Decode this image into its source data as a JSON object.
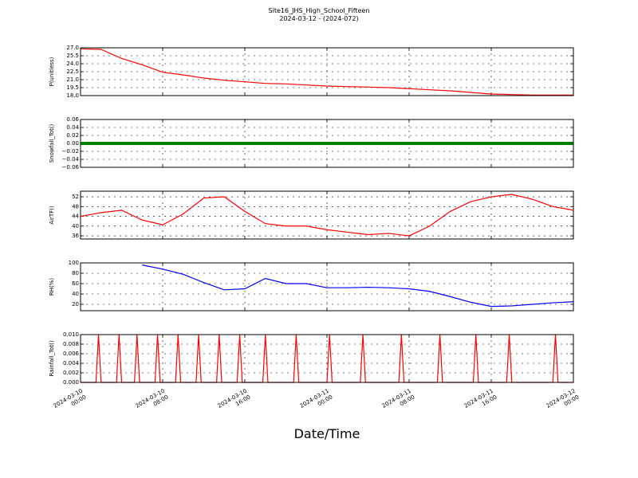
{
  "title": "Site16_JHS_High_School_Fifteen",
  "subtitle": "2024-03-12 - (2024-072)",
  "xlabel": "Date/Time",
  "xlim": [
    "2024-03-10 00:00",
    "2024-03-12 00:00"
  ],
  "xticks": [
    {
      "value": "2024-03-10 00:00",
      "label": [
        "2024-03-10",
        "00:00"
      ]
    },
    {
      "value": "2024-03-10 08:00",
      "label": [
        "2024-03-10",
        "08:00"
      ]
    },
    {
      "value": "2024-03-10 16:00",
      "label": [
        "2024-03-10",
        "16:00"
      ]
    },
    {
      "value": "2024-03-11 00:00",
      "label": [
        "2024-03-11",
        "00:00"
      ]
    },
    {
      "value": "2024-03-11 08:00",
      "label": [
        "2024-03-11",
        "08:00"
      ]
    },
    {
      "value": "2024-03-11 16:00",
      "label": [
        "2024-03-11",
        "16:00"
      ]
    },
    {
      "value": "2024-03-12 00:00",
      "label": [
        "2024-03-12",
        "00:00"
      ]
    }
  ],
  "chart_data": [
    {
      "type": "line",
      "ylabel": "P(unitless)",
      "grid": true,
      "x": [
        "2024-03-10 00:00",
        "2024-03-10 02:00",
        "2024-03-10 04:00",
        "2024-03-10 06:00",
        "2024-03-10 08:00",
        "2024-03-10 10:00",
        "2024-03-10 12:00",
        "2024-03-10 14:00",
        "2024-03-10 16:00",
        "2024-03-10 18:00",
        "2024-03-10 20:00",
        "2024-03-10 22:00",
        "2024-03-11 00:00",
        "2024-03-11 02:00",
        "2024-03-11 04:00",
        "2024-03-11 06:00",
        "2024-03-11 08:00",
        "2024-03-11 10:00",
        "2024-03-11 12:00",
        "2024-03-11 14:00",
        "2024-03-11 16:00",
        "2024-03-11 18:00",
        "2024-03-11 20:00",
        "2024-03-11 22:00",
        "2024-03-12 00:00"
      ],
      "ylim": [
        18,
        27
      ],
      "yticks": [
        {
          "value": 18,
          "label": "18.0"
        },
        19.5,
        {
          "value": 21,
          "label": "21.0"
        },
        22.5,
        {
          "value": 24,
          "label": "24.0"
        },
        25.5,
        {
          "value": 27,
          "label": "27.0"
        }
      ],
      "series": [
        {
          "color": "#ff0000",
          "values": [
            26.8,
            26.7,
            25.0,
            23.8,
            22.4,
            21.9,
            21.3,
            20.9,
            20.6,
            20.3,
            20.2,
            20.0,
            19.8,
            19.7,
            19.6,
            19.5,
            19.3,
            19.1,
            18.9,
            18.6,
            18.3,
            18.2,
            18.1,
            18.1,
            18.1
          ]
        }
      ]
    },
    {
      "type": "line",
      "ylabel": "Snowfall_Tot()",
      "grid": true,
      "x": [
        "2024-03-10 00:00",
        "2024-03-10 02:00",
        "2024-03-10 04:00",
        "2024-03-10 06:00",
        "2024-03-10 08:00",
        "2024-03-10 10:00",
        "2024-03-10 12:00",
        "2024-03-10 14:00",
        "2024-03-10 16:00",
        "2024-03-10 18:00",
        "2024-03-10 20:00",
        "2024-03-10 22:00",
        "2024-03-11 00:00",
        "2024-03-11 02:00",
        "2024-03-11 04:00",
        "2024-03-11 06:00",
        "2024-03-11 08:00",
        "2024-03-11 10:00",
        "2024-03-11 12:00",
        "2024-03-11 14:00",
        "2024-03-11 16:00",
        "2024-03-11 18:00",
        "2024-03-11 20:00",
        "2024-03-11 22:00",
        "2024-03-12 00:00"
      ],
      "ylim": [
        -0.06,
        0.06
      ],
      "yticks": [
        {
          "value": -0.06,
          "label": "−0.06"
        },
        {
          "value": -0.04,
          "label": "−0.04"
        },
        {
          "value": -0.02,
          "label": "−0.02"
        },
        {
          "value": 0,
          "label": "0.00"
        },
        0.02,
        0.04,
        0.06
      ],
      "series": [
        {
          "color": "#008000",
          "values": [
            0,
            0,
            0,
            0,
            0,
            0,
            0,
            0,
            0,
            0,
            0,
            0,
            0,
            0,
            0,
            0,
            0,
            0,
            0,
            0,
            0,
            0,
            0,
            0,
            0
          ]
        }
      ]
    },
    {
      "type": "line",
      "ylabel": "AirTF()",
      "grid": true,
      "x": [
        "2024-03-10 00:00",
        "2024-03-10 02:00",
        "2024-03-10 04:00",
        "2024-03-10 06:00",
        "2024-03-10 08:00",
        "2024-03-10 10:00",
        "2024-03-10 12:00",
        "2024-03-10 14:00",
        "2024-03-10 16:00",
        "2024-03-10 18:00",
        "2024-03-10 20:00",
        "2024-03-10 22:00",
        "2024-03-11 00:00",
        "2024-03-11 02:00",
        "2024-03-11 04:00",
        "2024-03-11 06:00",
        "2024-03-11 08:00",
        "2024-03-11 10:00",
        "2024-03-11 12:00",
        "2024-03-11 14:00",
        "2024-03-11 16:00",
        "2024-03-11 18:00",
        "2024-03-11 20:00",
        "2024-03-11 22:00",
        "2024-03-12 00:00"
      ],
      "ylim": [
        34.7,
        54.3
      ],
      "yticks": [
        36,
        40,
        44,
        48,
        52
      ],
      "series": [
        {
          "color": "#ff0000",
          "values": [
            44,
            45.5,
            46.5,
            42.5,
            40.5,
            45,
            51.5,
            52,
            46,
            41,
            40,
            40,
            38.5,
            37.5,
            36.5,
            37,
            36,
            40,
            46,
            50,
            52,
            53,
            51,
            48,
            46.5
          ]
        }
      ]
    },
    {
      "type": "line",
      "ylabel": "RH(%)",
      "grid": true,
      "x": [
        "2024-03-10 00:00",
        "2024-03-10 02:00",
        "2024-03-10 04:00",
        "2024-03-10 06:00",
        "2024-03-10 08:00",
        "2024-03-10 10:00",
        "2024-03-10 12:00",
        "2024-03-10 14:00",
        "2024-03-10 16:00",
        "2024-03-10 18:00",
        "2024-03-10 20:00",
        "2024-03-10 22:00",
        "2024-03-11 00:00",
        "2024-03-11 02:00",
        "2024-03-11 04:00",
        "2024-03-11 06:00",
        "2024-03-11 08:00",
        "2024-03-11 10:00",
        "2024-03-11 12:00",
        "2024-03-11 14:00",
        "2024-03-11 16:00",
        "2024-03-11 18:00",
        "2024-03-11 20:00",
        "2024-03-11 22:00",
        "2024-03-12 00:00"
      ],
      "ylim": [
        7.7,
        100
      ],
      "yticks": [
        20,
        40,
        60,
        80,
        100
      ],
      "series": [
        {
          "color": "#0000ff",
          "values": [
            null,
            null,
            null,
            96,
            88,
            78,
            62,
            48,
            50,
            70,
            60,
            60,
            52,
            52,
            53,
            52,
            50,
            45,
            35,
            24,
            16,
            17,
            20,
            23,
            25
          ]
        }
      ]
    },
    {
      "type": "line",
      "ylabel": "Rainfall_Tot()",
      "grid": true,
      "x": [
        "2024-03-10 00:00",
        "2024-03-10 01:30",
        "2024-03-10 01:45",
        "2024-03-10 02:00",
        "2024-03-10 03:30",
        "2024-03-10 03:45",
        "2024-03-10 04:00",
        "2024-03-10 05:15",
        "2024-03-10 05:30",
        "2024-03-10 05:45",
        "2024-03-10 07:15",
        "2024-03-10 07:30",
        "2024-03-10 07:45",
        "2024-03-10 09:15",
        "2024-03-10 09:30",
        "2024-03-10 09:45",
        "2024-03-10 11:15",
        "2024-03-10 11:30",
        "2024-03-10 11:45",
        "2024-03-10 13:15",
        "2024-03-10 13:30",
        "2024-03-10 13:45",
        "2024-03-10 15:15",
        "2024-03-10 15:30",
        "2024-03-10 15:45",
        "2024-03-10 17:45",
        "2024-03-10 18:00",
        "2024-03-10 18:15",
        "2024-03-10 20:45",
        "2024-03-10 21:00",
        "2024-03-10 21:15",
        "2024-03-11 00:00",
        "2024-03-11 00:15",
        "2024-03-11 00:30",
        "2024-03-11 03:15",
        "2024-03-11 03:30",
        "2024-03-11 03:45",
        "2024-03-11 07:00",
        "2024-03-11 07:15",
        "2024-03-11 07:30",
        "2024-03-11 10:45",
        "2024-03-11 11:00",
        "2024-03-11 11:15",
        "2024-03-11 14:15",
        "2024-03-11 14:30",
        "2024-03-11 14:45",
        "2024-03-11 17:30",
        "2024-03-11 17:45",
        "2024-03-11 18:00",
        "2024-03-11 22:00",
        "2024-03-11 22:15",
        "2024-03-11 22:30",
        "2024-03-12 00:00"
      ],
      "ylim": [
        0,
        0.01
      ],
      "yticks": [
        {
          "value": 0,
          "label": "0.000"
        },
        {
          "value": 0.002,
          "label": "0.002"
        },
        {
          "value": 0.004,
          "label": "0.004"
        },
        {
          "value": 0.006,
          "label": "0.006"
        },
        {
          "value": 0.008,
          "label": "0.008"
        },
        {
          "value": 0.01,
          "label": "0.010"
        }
      ],
      "series": [
        {
          "color": "#ff0000",
          "values": [
            0,
            0,
            0.01,
            0,
            0,
            0.01,
            0,
            0,
            0.01,
            0,
            0,
            0.01,
            0,
            0,
            0.01,
            0,
            0,
            0.01,
            0,
            0,
            0.01,
            0,
            0,
            0.01,
            0,
            0,
            0.01,
            0,
            0,
            0.01,
            0,
            0,
            0.01,
            0,
            0,
            0.01,
            0,
            0,
            0.01,
            0,
            0,
            0.01,
            0,
            0,
            0.01,
            0,
            0,
            0.01,
            0,
            0,
            0.01,
            0,
            0
          ]
        }
      ]
    }
  ]
}
